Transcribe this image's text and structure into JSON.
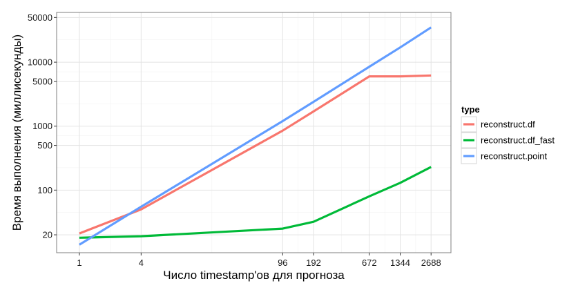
{
  "chart_data": {
    "type": "line",
    "xlabel": "Число timestamp'ов для прогноза",
    "ylabel": "Время выполнения (миллисекунды)",
    "x_scale": "log",
    "y_scale": "log",
    "x_ticks": [
      1,
      4,
      96,
      192,
      672,
      1344,
      2688
    ],
    "x_tick_labels": [
      "1",
      "4",
      "96",
      "192",
      "672",
      "1344",
      "2688"
    ],
    "y_ticks": [
      20,
      100,
      500,
      1000,
      5000,
      10000,
      50000
    ],
    "y_tick_labels": [
      "20",
      "100",
      "500",
      "1000",
      "5000",
      "10000",
      "50000"
    ],
    "xlim": [
      0.6,
      4200
    ],
    "ylim": [
      10.5,
      60000
    ],
    "grid": true,
    "legend": {
      "title": "type",
      "position": "right"
    },
    "series": [
      {
        "name": "reconstruct.df",
        "color": "#F8766D",
        "x": [
          1,
          4,
          96,
          192,
          672,
          1344,
          2688
        ],
        "y": [
          21,
          50,
          850,
          1700,
          6000,
          6000,
          6200
        ]
      },
      {
        "name": "reconstruct.df_fast",
        "color": "#00BA38",
        "x": [
          1,
          4,
          96,
          192,
          672,
          1344,
          2688
        ],
        "y": [
          18,
          19,
          25,
          32,
          80,
          130,
          230
        ]
      },
      {
        "name": "reconstruct.point",
        "color": "#619CFF",
        "x": [
          1,
          4,
          96,
          192,
          672,
          1344,
          2688
        ],
        "y": [
          14,
          55,
          1200,
          2400,
          8500,
          17000,
          35000
        ]
      }
    ]
  }
}
